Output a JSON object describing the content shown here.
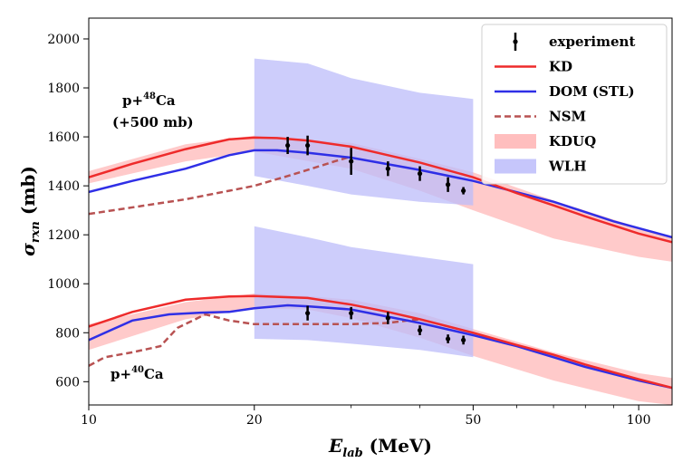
{
  "chart_data": {
    "type": "line",
    "xscale": "log",
    "xlim": [
      10,
      115
    ],
    "ylim": [
      505,
      2085
    ],
    "x_ticks": [
      10,
      20,
      50,
      100
    ],
    "x_tick_labels": [
      "10",
      "20",
      "50",
      "100"
    ],
    "x_minor_ticks": [
      30,
      40,
      60,
      70,
      80,
      90
    ],
    "y_ticks": [
      600,
      800,
      1000,
      1200,
      1400,
      1600,
      1800,
      2000
    ],
    "y_tick_labels": [
      "600",
      "800",
      "1000",
      "1200",
      "1400",
      "1600",
      "1800",
      "2000"
    ],
    "xlabel": {
      "main": "E",
      "sub": "lab",
      "unit": "(MeV)"
    },
    "ylabel": {
      "main": "σ",
      "sub": "rxn",
      "unit": "(mb)"
    },
    "annotations": {
      "ca48_line1": {
        "base": "p+",
        "sup": "48",
        "elem": "Ca"
      },
      "ca48_line2": "(+500 mb)",
      "ca40": {
        "base": "p+",
        "sup": "40",
        "elem": "Ca"
      }
    },
    "legend": {
      "position": "top-right",
      "entries": [
        {
          "key": "experiment",
          "label": "experiment",
          "kind": "errorbar",
          "color": "#000000"
        },
        {
          "key": "KD",
          "label": "KD",
          "kind": "line",
          "color": "#ee2b2b"
        },
        {
          "key": "DOM",
          "label": "DOM (STL)",
          "kind": "line",
          "color": "#2f2fe6"
        },
        {
          "key": "NSM",
          "label": "NSM",
          "kind": "dashed",
          "color": "#b85252"
        },
        {
          "key": "KDUQ",
          "label": "KDUQ",
          "kind": "band",
          "color": "#ffb3b3"
        },
        {
          "key": "WLH",
          "label": "WLH",
          "kind": "band",
          "color": "#bcbcfa"
        }
      ]
    },
    "groups": [
      {
        "name": "p+48Ca (+500 mb)",
        "WLH": {
          "x": [
            20,
            25,
            30,
            40,
            50
          ],
          "lower": [
            1440,
            1400,
            1365,
            1335,
            1320
          ],
          "upper": [
            1920,
            1900,
            1840,
            1780,
            1755
          ]
        },
        "KDUQ": {
          "x": [
            10,
            15,
            20,
            30,
            40,
            50,
            70,
            100,
            115
          ],
          "lower": [
            1410,
            1500,
            1540,
            1470,
            1380,
            1300,
            1185,
            1110,
            1090
          ],
          "upper": [
            1460,
            1570,
            1605,
            1575,
            1510,
            1455,
            1340,
            1230,
            1195
          ]
        },
        "KD": {
          "x": [
            10,
            12,
            15,
            18,
            20,
            22,
            25,
            30,
            35,
            40,
            50,
            60,
            70,
            80,
            100,
            115
          ],
          "y": [
            1435,
            1490,
            1550,
            1590,
            1597,
            1595,
            1585,
            1560,
            1525,
            1495,
            1435,
            1370,
            1320,
            1275,
            1205,
            1170
          ]
        },
        "DOM": {
          "x": [
            10,
            12,
            15,
            18,
            20,
            22,
            25,
            30,
            40,
            50,
            70,
            90,
            115
          ],
          "y": [
            1375,
            1420,
            1470,
            1525,
            1545,
            1545,
            1535,
            1515,
            1465,
            1420,
            1335,
            1255,
            1190
          ]
        },
        "NSM": {
          "x": [
            10,
            15,
            20,
            23,
            25,
            28,
            30
          ],
          "y": [
            1285,
            1345,
            1400,
            1440,
            1465,
            1500,
            1520
          ]
        },
        "experiment": [
          {
            "x": 23,
            "y": 1565,
            "err": 35
          },
          {
            "x": 25,
            "y": 1565,
            "err": 40
          },
          {
            "x": 30,
            "y": 1500,
            "err": 55
          },
          {
            "x": 35,
            "y": 1470,
            "err": 30
          },
          {
            "x": 40,
            "y": 1450,
            "err": 30
          },
          {
            "x": 45,
            "y": 1405,
            "err": 30
          },
          {
            "x": 48,
            "y": 1380,
            "err": 15
          }
        ]
      },
      {
        "name": "p+40Ca",
        "WLH": {
          "x": [
            20,
            25,
            30,
            40,
            50
          ],
          "lower": [
            775,
            770,
            755,
            730,
            700
          ],
          "upper": [
            1235,
            1190,
            1150,
            1110,
            1080
          ]
        },
        "KDUQ": {
          "x": [
            10,
            15,
            20,
            25,
            30,
            40,
            50,
            70,
            100,
            115
          ],
          "lower": [
            730,
            855,
            900,
            895,
            860,
            780,
            705,
            605,
            520,
            505
          ],
          "upper": [
            835,
            925,
            960,
            950,
            935,
            880,
            815,
            720,
            635,
            615
          ]
        },
        "KD": {
          "x": [
            10,
            12,
            15,
            18,
            20,
            25,
            30,
            35,
            40,
            50,
            60,
            70,
            80,
            100,
            115
          ],
          "y": [
            825,
            885,
            935,
            948,
            950,
            942,
            915,
            885,
            855,
            800,
            750,
            710,
            670,
            610,
            575
          ]
        },
        "DOM": {
          "x": [
            10,
            12,
            14,
            16,
            18,
            20,
            23,
            25,
            30,
            40,
            50,
            60,
            70,
            80,
            100,
            115
          ],
          "y": [
            770,
            850,
            875,
            882,
            885,
            900,
            912,
            908,
            895,
            840,
            790,
            745,
            700,
            660,
            605,
            575
          ]
        },
        "NSM": {
          "x": [
            10,
            10.7,
            12,
            13.5,
            14.5,
            16.3,
            18,
            20,
            25,
            30,
            35,
            38,
            40
          ],
          "y": [
            665,
            700,
            720,
            745,
            820,
            875,
            850,
            835,
            835,
            835,
            840,
            850,
            855
          ]
        },
        "experiment": [
          {
            "x": 25,
            "y": 880,
            "err": 30
          },
          {
            "x": 30,
            "y": 880,
            "err": 25
          },
          {
            "x": 35,
            "y": 860,
            "err": 25
          },
          {
            "x": 40,
            "y": 810,
            "err": 20
          },
          {
            "x": 45,
            "y": 775,
            "err": 18
          },
          {
            "x": 48,
            "y": 770,
            "err": 18
          }
        ]
      }
    ]
  }
}
